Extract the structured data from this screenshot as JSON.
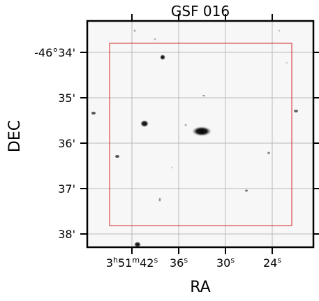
{
  "image": {
    "title": "GSF 016",
    "x_axis_label": "RA",
    "y_axis_label": "DEC",
    "x_tick_labels": [
      {
        "h": "3",
        "m": "51",
        "s": "42"
      },
      {
        "s": "36"
      },
      {
        "s": "30"
      },
      {
        "s": "24"
      }
    ],
    "y_tick_labels": [
      "-46°34'",
      "35'",
      "36'",
      "37'",
      "38'"
    ],
    "colors": {
      "frame": "#000000",
      "grid": "#b8b8b8",
      "sky_background": "#f7f7f7",
      "region_box": "#d62728"
    }
  }
}
